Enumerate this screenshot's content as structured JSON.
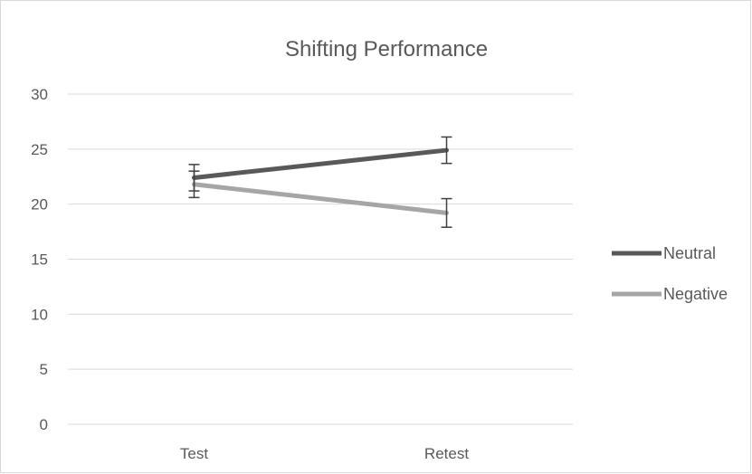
{
  "chart_data": {
    "type": "line",
    "title": "Shifting Performance",
    "xlabel": "",
    "ylabel": "",
    "categories": [
      "Test",
      "Retest"
    ],
    "ylim": [
      0,
      30
    ],
    "yticks": [
      0,
      5,
      10,
      15,
      20,
      25,
      30
    ],
    "grid": true,
    "legend_position": "right",
    "series": [
      {
        "name": "Neutral",
        "values": [
          22.4,
          24.9
        ],
        "error": [
          1.2,
          1.2
        ],
        "color": "#595959"
      },
      {
        "name": "Negative",
        "values": [
          21.8,
          19.2
        ],
        "error": [
          1.2,
          1.3
        ],
        "color": "#A6A6A6"
      }
    ],
    "colors": {
      "gridline": "#D9D9D9",
      "text": "#595959",
      "error_bar": "#404040",
      "border": "#D9D9D9"
    }
  }
}
